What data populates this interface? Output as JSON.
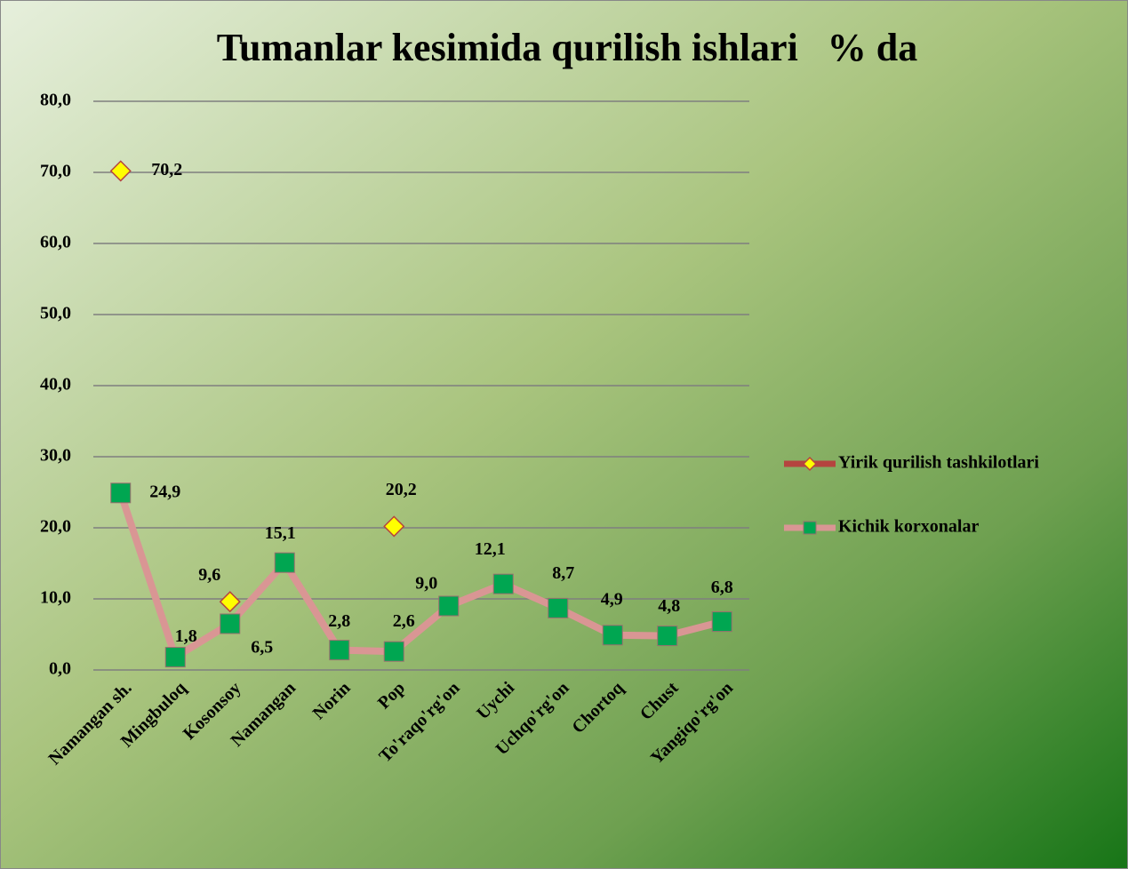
{
  "chart_data": {
    "type": "line",
    "title": "Tumanlar kesimida qurilish ishlari   % da",
    "categories": [
      "Namangan sh.",
      "Mingbuloq",
      "Kosonsoy",
      "Namangan",
      "Norin",
      "Pop",
      "To'raqo'rg'on",
      "Uychi",
      "Uchqo'rg'on",
      "Chortoq",
      "Chust",
      "Yangiqo'rg'on"
    ],
    "series": [
      {
        "name": "Yirik qurilish tashkilotlari",
        "color": "#b5443f",
        "marker_color": "#ffff00",
        "values": [
          70.2,
          null,
          9.6,
          null,
          null,
          20.2,
          null,
          null,
          null,
          null,
          null,
          null
        ],
        "value_labels": [
          "70,2",
          null,
          "9,6",
          null,
          null,
          "20,2",
          null,
          null,
          null,
          null,
          null,
          null
        ]
      },
      {
        "name": "Kichik korxonalar",
        "color": "#d99694",
        "marker_color": "#00a651",
        "values": [
          24.9,
          1.8,
          6.5,
          15.1,
          2.8,
          2.6,
          9.0,
          12.1,
          8.7,
          4.9,
          4.8,
          6.8
        ],
        "value_labels": [
          "24,9",
          "1,8",
          "6,5",
          "15,1",
          "2,8",
          "2,6",
          "9,0",
          "12,1",
          "8,7",
          "4,9",
          "4,8",
          "6,8"
        ]
      }
    ],
    "ylim": [
      0,
      80
    ],
    "yticks": [
      {
        "value": 0,
        "label": "0,0"
      },
      {
        "value": 10,
        "label": "10,0"
      },
      {
        "value": 20,
        "label": "20,0"
      },
      {
        "value": 30,
        "label": "30,0"
      },
      {
        "value": 40,
        "label": "40,0"
      },
      {
        "value": 50,
        "label": "50,0"
      },
      {
        "value": 60,
        "label": "60,0"
      },
      {
        "value": 70,
        "label": "70,0"
      },
      {
        "value": 80,
        "label": "80,0"
      }
    ],
    "grid": true,
    "legend": "right"
  }
}
